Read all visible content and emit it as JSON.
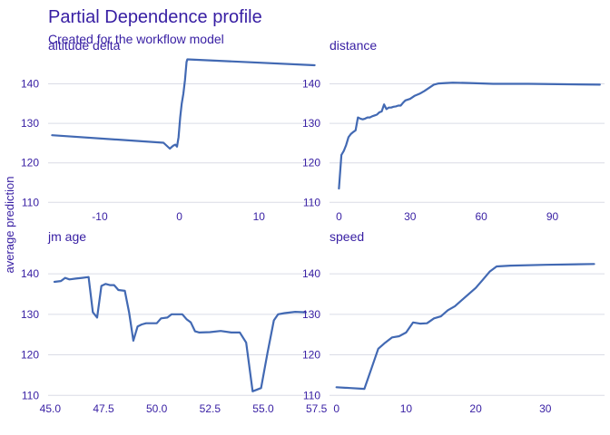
{
  "title": "Partial Dependence profile",
  "subtitle": "Created for the workflow model",
  "ylabel": "average prediction",
  "line_color": "#4269b3",
  "text_color": "#371ea3",
  "grid_color": "#dadce6",
  "chart_data": [
    {
      "type": "line",
      "panel": "altitude_delta",
      "strip_label": "altitude  delta",
      "xlim": [
        -16.5,
        17.5
      ],
      "ylim": [
        108,
        147
      ],
      "xticks": [
        -10,
        0,
        10
      ],
      "xtick_labels": [
        "-10",
        "0",
        "10"
      ],
      "yticks": [
        110,
        120,
        130,
        140
      ],
      "ytick_labels": [
        "110",
        "120",
        "130",
        "140"
      ],
      "x": [
        -16,
        -2,
        -1.2,
        -0.8,
        -0.5,
        -0.3,
        -0.1,
        0.0,
        0.1,
        0.3,
        0.5,
        0.7,
        0.9,
        1.0,
        17
      ],
      "y": [
        127.0,
        125.1,
        123.6,
        124.3,
        124.6,
        124.1,
        126.5,
        129.0,
        131.5,
        135.0,
        137.5,
        141.0,
        145.5,
        146.2,
        144.7
      ]
    },
    {
      "type": "line",
      "panel": "distance",
      "strip_label": "distance",
      "xlim": [
        -4,
        112
      ],
      "ylim": [
        108,
        147
      ],
      "xticks": [
        0,
        30,
        60,
        90
      ],
      "xtick_labels": [
        "0",
        "30",
        "60",
        "90"
      ],
      "yticks": [
        110,
        120,
        130,
        140
      ],
      "ytick_labels": [
        "110",
        "120",
        "130",
        "140"
      ],
      "x": [
        0,
        1,
        2,
        3,
        4,
        5,
        6,
        7,
        8,
        9,
        10,
        11,
        12,
        13,
        14,
        15,
        16,
        17,
        18,
        19,
        20,
        21,
        22,
        23,
        24,
        25,
        26,
        27,
        28,
        29,
        30,
        32,
        34,
        36,
        38,
        40,
        42,
        45,
        48,
        55,
        65,
        80,
        110
      ],
      "y": [
        113.5,
        122.0,
        123.0,
        124.5,
        126.5,
        127.3,
        127.8,
        128.2,
        131.5,
        131.2,
        131.0,
        131.2,
        131.5,
        131.5,
        131.8,
        132.0,
        132.2,
        132.8,
        133.0,
        134.8,
        133.6,
        134.0,
        134.0,
        134.2,
        134.3,
        134.5,
        134.5,
        135.2,
        135.8,
        136.0,
        136.2,
        137.0,
        137.5,
        138.2,
        139.0,
        139.8,
        140.1,
        140.2,
        140.3,
        140.2,
        140.0,
        140.0,
        139.8
      ]
    },
    {
      "type": "line",
      "panel": "jm_age",
      "strip_label": "jm  age",
      "xlim": [
        44.9,
        57.6
      ],
      "ylim": [
        108.5,
        146.5
      ],
      "xticks": [
        45.0,
        47.5,
        50.0,
        52.5,
        55.0,
        57.5
      ],
      "xtick_labels": [
        "45.0",
        "47.5",
        "50.0",
        "52.5",
        "55.0",
        "57.5"
      ],
      "yticks": [
        110,
        120,
        130,
        140
      ],
      "ytick_labels": [
        "110",
        "120",
        "130",
        "140"
      ],
      "x": [
        45.2,
        45.5,
        45.7,
        45.9,
        46.2,
        46.5,
        46.8,
        47.0,
        47.2,
        47.4,
        47.6,
        47.8,
        48.0,
        48.2,
        48.5,
        48.7,
        48.9,
        49.1,
        49.3,
        49.5,
        49.7,
        50.0,
        50.2,
        50.5,
        50.7,
        51.0,
        51.2,
        51.4,
        51.6,
        51.8,
        52.0,
        52.5,
        53.0,
        53.5,
        53.9,
        54.2,
        54.5,
        54.9,
        55.2,
        55.5,
        55.7,
        56.0,
        56.5,
        57.0
      ],
      "y": [
        138.0,
        138.2,
        139.0,
        138.6,
        138.8,
        139.0,
        139.2,
        130.5,
        129.2,
        137.0,
        137.5,
        137.2,
        137.2,
        136.0,
        135.8,
        130.5,
        123.5,
        127.0,
        127.5,
        127.8,
        127.8,
        127.8,
        129.0,
        129.2,
        130.0,
        130.0,
        130.0,
        128.8,
        128.0,
        125.8,
        125.5,
        125.6,
        125.9,
        125.5,
        125.5,
        123.0,
        111.0,
        111.8,
        120.5,
        128.5,
        130.0,
        130.3,
        130.6,
        130.5
      ]
    },
    {
      "type": "line",
      "panel": "speed",
      "strip_label": "speed",
      "xlim": [
        -1,
        38.5
      ],
      "ylim": [
        108.5,
        146.5
      ],
      "xticks": [
        0,
        10,
        20,
        30
      ],
      "xtick_labels": [
        "0",
        "10",
        "20",
        "30"
      ],
      "yticks": [
        110,
        120,
        130,
        140
      ],
      "ytick_labels": [
        "110",
        "120",
        "130",
        "140"
      ],
      "x": [
        0,
        2,
        4,
        5,
        6,
        7,
        8,
        9,
        10,
        11,
        12,
        13,
        14,
        15,
        16,
        17,
        18,
        19,
        20,
        21,
        22,
        23,
        25,
        30,
        37
      ],
      "y": [
        112.0,
        111.8,
        111.6,
        116.5,
        121.5,
        123.0,
        124.3,
        124.6,
        125.5,
        128.0,
        127.7,
        127.8,
        129.0,
        129.5,
        131.0,
        132.0,
        133.5,
        135.0,
        136.5,
        138.5,
        140.5,
        141.8,
        142.0,
        142.2,
        142.4
      ]
    }
  ]
}
